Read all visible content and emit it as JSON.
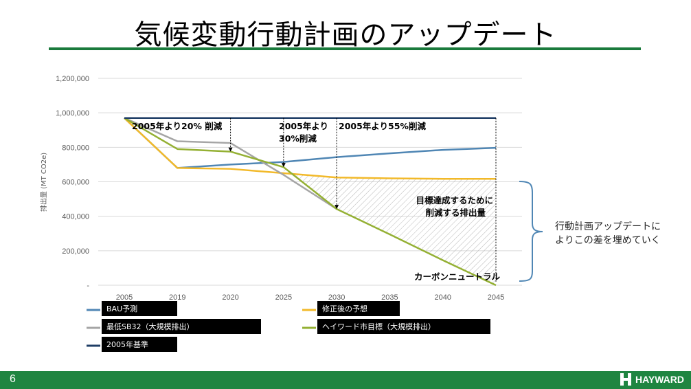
{
  "page": {
    "title": "気候変動行動計画のアップデート",
    "page_number": "6",
    "logo_text": "HAYWARD",
    "side_note": [
      "行動計画アップデートに",
      "よりこの差を埋めていく"
    ]
  },
  "colors": {
    "green": "#1f8541",
    "bau": "#4f86b4",
    "revised": "#f2b929",
    "sb32": "#a5a5a5",
    "hayward": "#94b033",
    "baseline": "#1f3e66",
    "bracket": "#4f86b4"
  },
  "chart_data": {
    "type": "line",
    "ylabel": "排出量 (MT CO2e)",
    "ylim": [
      0,
      1200000
    ],
    "yticks": [
      0,
      200000,
      400000,
      600000,
      800000,
      1000000,
      1200000
    ],
    "ytick_labels": [
      "-",
      "200,000",
      "400,000",
      "600,000",
      "800,000",
      "1,000,000",
      "1,200,000"
    ],
    "categories": [
      "2005",
      "2019",
      "2020",
      "2025",
      "2030",
      "2035",
      "2040",
      "2045"
    ],
    "grid": true,
    "series": [
      {
        "name": "BAU予測",
        "color": "#4f86b4",
        "values": [
          970000,
          680000,
          700000,
          715000,
          743000,
          765000,
          785000,
          797000
        ]
      },
      {
        "name": "修正後の予想",
        "color": "#f2b929",
        "values": [
          970000,
          680000,
          675000,
          650000,
          625000,
          620000,
          617000,
          617000
        ]
      },
      {
        "name": "最低SB32（大規模排出）",
        "color": "#a5a5a5",
        "values": [
          970000,
          835000,
          825000,
          640000,
          442000,
          null,
          null,
          null
        ]
      },
      {
        "name": "ヘイワード市目標（大規模排出）",
        "color": "#94b033",
        "values": [
          970000,
          790000,
          775000,
          685000,
          442000,
          295000,
          145000,
          0
        ]
      },
      {
        "name": "2005年基準",
        "color": "#1f3e66",
        "values": [
          970000,
          970000,
          970000,
          970000,
          970000,
          970000,
          970000,
          970000
        ]
      }
    ],
    "annotations": [
      {
        "text": "2005年より20% 削減",
        "x": "2020"
      },
      {
        "text": "2005年より",
        "x": "2025"
      },
      {
        "text": "30%削減",
        "x": "2025"
      },
      {
        "text": "2005年より55%削減",
        "x": "2030"
      },
      {
        "text": "目標達成するために",
        "x": "2040"
      },
      {
        "text": "削減する排出量",
        "x": "2040"
      },
      {
        "text": "カーボンニュートラル",
        "x": "2045"
      }
    ],
    "legend": [
      {
        "label": "BAU予測",
        "color": "#4f86b4"
      },
      {
        "label": "修正後の予想",
        "color": "#f2b929"
      },
      {
        "label": "最低SB32（大規模排出）",
        "color": "#a5a5a5"
      },
      {
        "label": "ヘイワード市目標（大規模排出）",
        "color": "#94b033"
      },
      {
        "label": "2005年基準",
        "color": "#1f3e66"
      }
    ]
  }
}
